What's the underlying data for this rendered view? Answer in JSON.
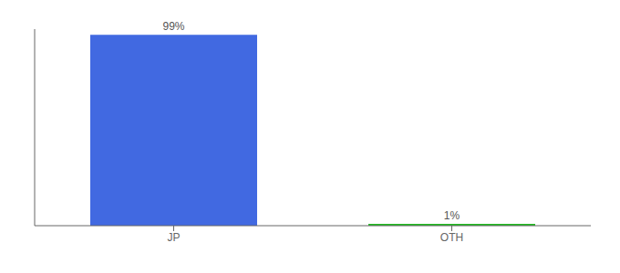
{
  "chart_data": {
    "type": "bar",
    "categories": [
      "JP",
      "OTH"
    ],
    "values": [
      99,
      1
    ],
    "value_labels": [
      "99%",
      "1%"
    ],
    "colors": [
      "#4169e1",
      "#22bb22"
    ],
    "ylim": [
      0,
      102
    ],
    "data_labels": true,
    "tick_labels": "x",
    "grid": false
  }
}
